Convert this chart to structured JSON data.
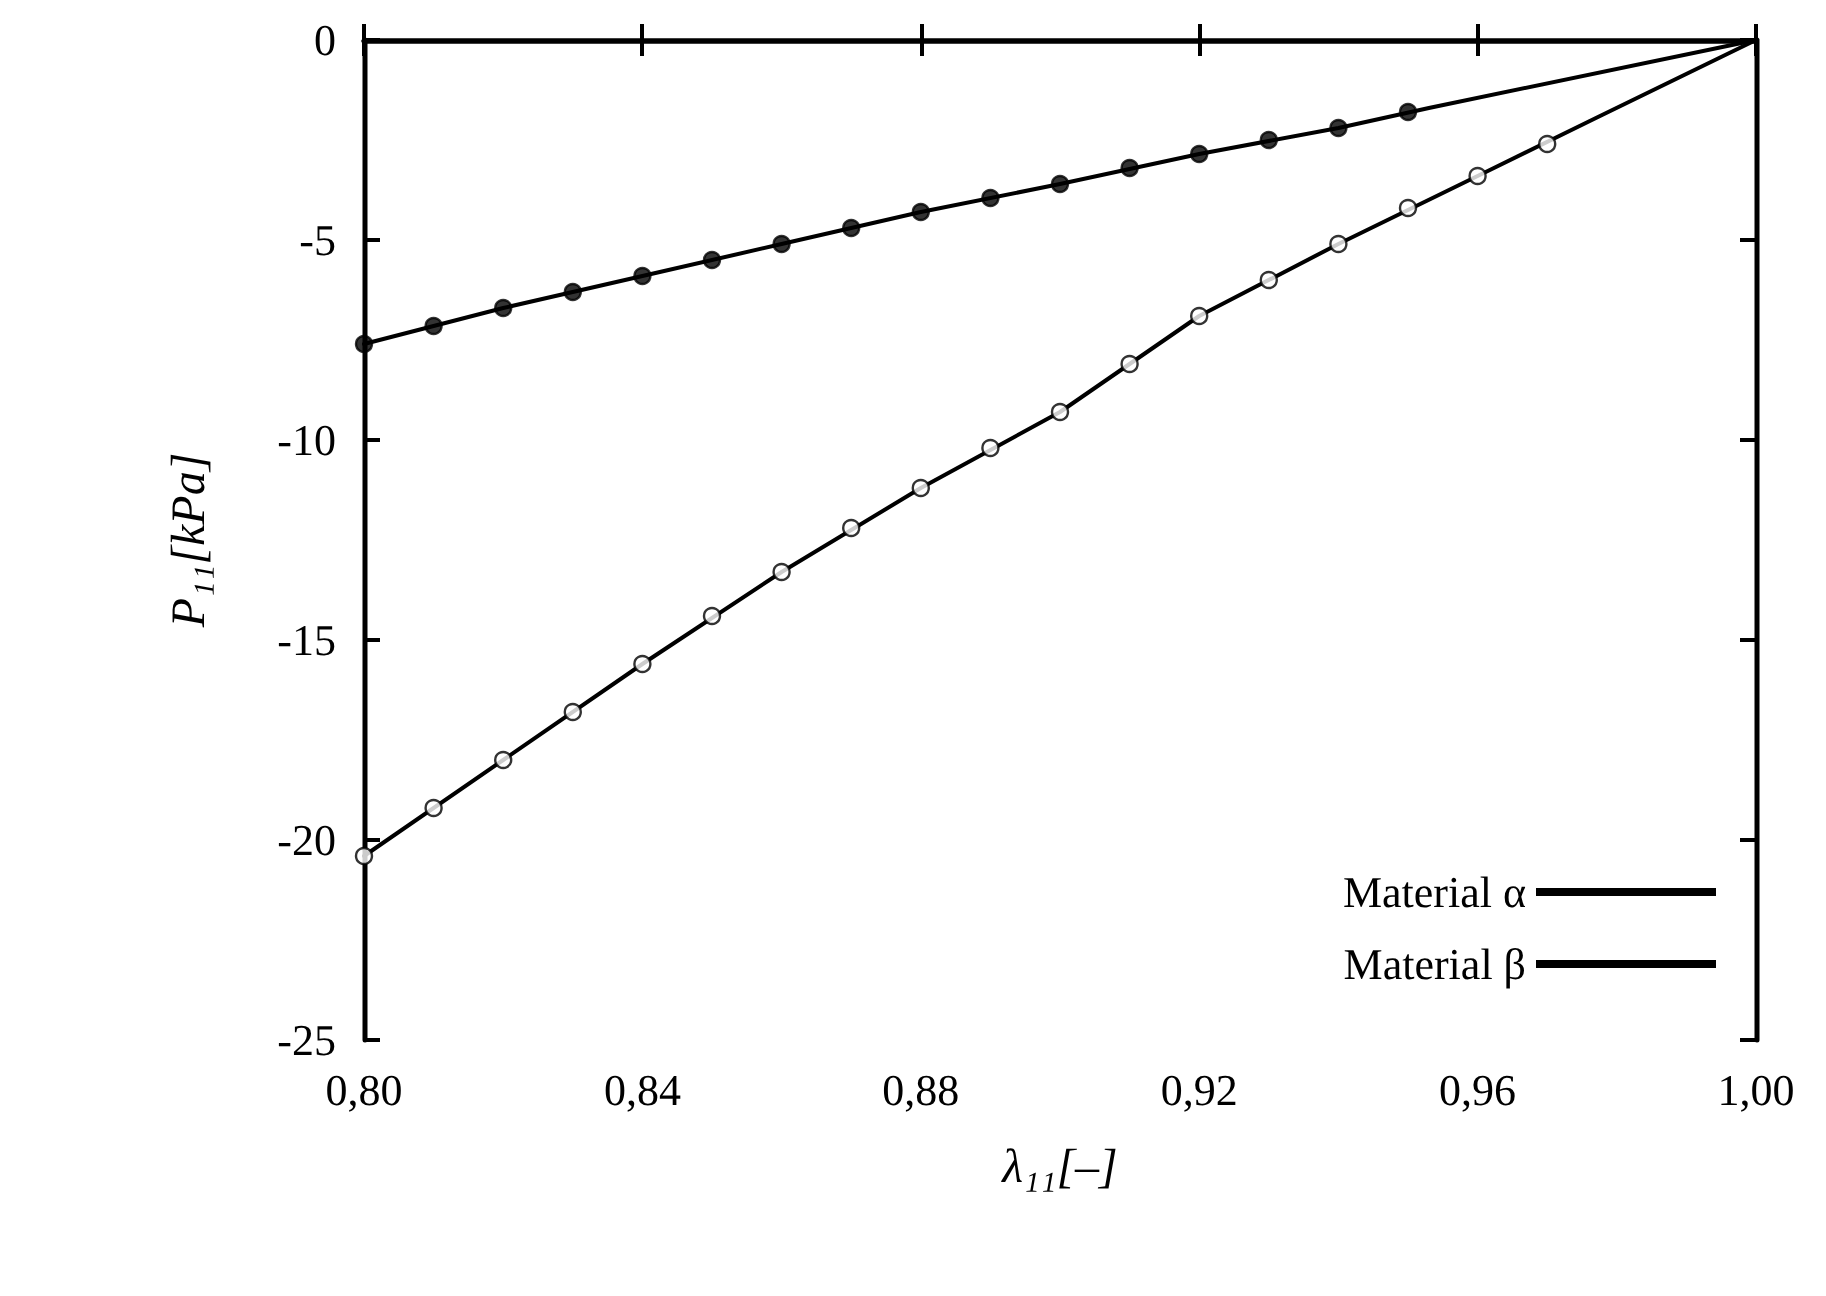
{
  "chart_data": {
    "type": "line",
    "xlabel": "λ₁₁[–]",
    "ylabel": "P₁₁[kPa]",
    "xlim": [
      0.8,
      1.0
    ],
    "xticks": [
      {
        "value": 0.8,
        "label": "0,80"
      },
      {
        "value": 0.84,
        "label": "0,84"
      },
      {
        "value": 0.88,
        "label": "0,88"
      },
      {
        "value": 0.92,
        "label": "0,92"
      },
      {
        "value": 0.96,
        "label": "0,96"
      },
      {
        "value": 1.0,
        "label": "1,00"
      }
    ],
    "ylim": [
      -25,
      0
    ],
    "yticks": [
      -25,
      -20,
      -15,
      -10,
      -5,
      0
    ],
    "grid": false,
    "legend": "bottom right",
    "line_style": "solid",
    "series": [
      {
        "name": "Material α",
        "color": "#000000",
        "marker": "none",
        "x": [
          0.8,
          0.82,
          0.84,
          0.86,
          0.88,
          0.9,
          0.92,
          0.94,
          0.953,
          1.0
        ],
        "values": [
          -7.6,
          -6.7,
          -5.9,
          -5.1,
          -4.3,
          -3.6,
          -2.85,
          -2.2,
          -1.7,
          0
        ]
      },
      {
        "name": "Material β",
        "color": "#000000",
        "marker": "none",
        "x": [
          0.8,
          0.82,
          0.84,
          0.86,
          0.88,
          0.9,
          0.92,
          0.94,
          0.96,
          0.977,
          1.0
        ],
        "values": [
          -20.4,
          -18.0,
          -15.6,
          -13.3,
          -11.2,
          -9.3,
          -6.9,
          -5.1,
          -3.4,
          -1.95,
          0
        ]
      },
      {
        "type": "scatter",
        "color": "#000000",
        "marker": "circle",
        "x": [
          0.8,
          0.81,
          0.82,
          0.83,
          0.84,
          0.85,
          0.86,
          0.87,
          0.88,
          0.89,
          0.9,
          0.91,
          0.92,
          0.93,
          0.94,
          0.95
        ],
        "values": [
          -7.6,
          -7.15,
          -6.7,
          -6.3,
          -5.9,
          -5.5,
          -5.1,
          -4.7,
          -4.3,
          -3.95,
          -3.6,
          -3.2,
          -2.85,
          -2.5,
          -2.2,
          -1.8
        ]
      },
      {
        "type": "scatter",
        "color": "#ffffff",
        "marker": "circle",
        "x": [
          0.8,
          0.81,
          0.82,
          0.83,
          0.84,
          0.85,
          0.86,
          0.87,
          0.88,
          0.89,
          0.9,
          0.91,
          0.92,
          0.93,
          0.94,
          0.95,
          0.96,
          0.97
        ],
        "values": [
          -20.4,
          -19.2,
          -18.0,
          -16.8,
          -15.6,
          -14.4,
          -13.3,
          -12.2,
          -11.2,
          -10.2,
          -9.3,
          -8.1,
          -6.9,
          -6.0,
          -5.1,
          -4.2,
          -3.4,
          -2.6
        ]
      }
    ]
  }
}
